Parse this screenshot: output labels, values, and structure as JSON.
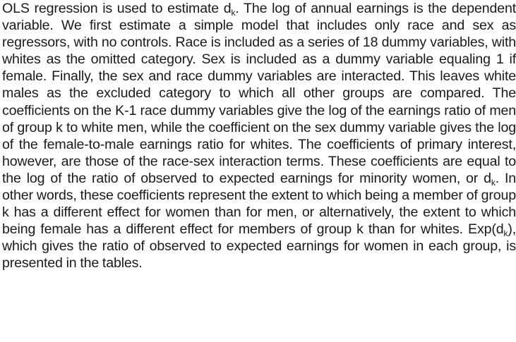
{
  "paragraph": {
    "seg_1": "OLS regression is used to estimate d",
    "sub_1": "k",
    "seg_2": ". The log of annual earnings is the dependent variable. We first estimate a simple model that includes only race and sex as regressors, with no controls. Race is included as a series of 18 dummy variables, with whites as the omitted category. Sex is included as a dummy variable equaling 1 if female. Finally, the sex and race dummy variables are interacted. This leaves white males as the excluded category to which all other groups are compared. The coefficients on the K-1 race dummy variables give the log of the earnings ratio of men of group k to white men, while the coefficient on the sex dummy variable gives the log of the female-to-male earnings ratio for whites. The coefficients of primary interest, however, are those of the race-sex interaction terms. These coefficients are equal to the log of the ratio of observed to expected earnings for minority women, or d",
    "sub_2": "k",
    "seg_3": ". In other words, these coefficients represent the extent to which being a member of group k has a different effect for women than for men, or alternatively, the extent to which being female has a different effect for members of group k than for whites. Exp(d",
    "sub_3": "k",
    "seg_4": "), which gives the ratio of observed to expected earnings for women in each group, is presented in the tables."
  }
}
